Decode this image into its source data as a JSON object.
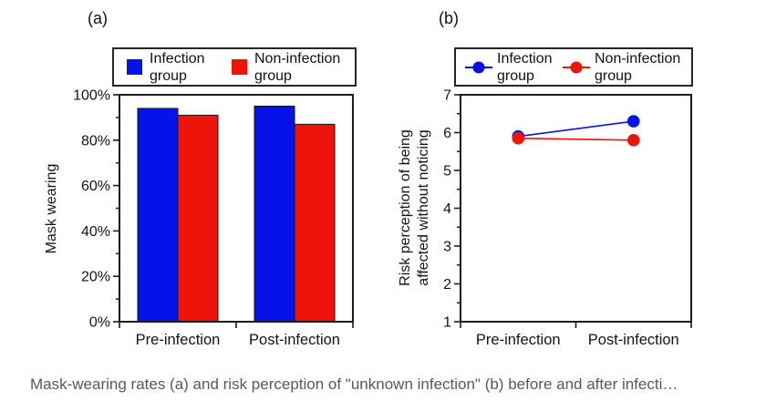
{
  "caption": "Mask-wearing rates (a) and risk perception of \"unknown infection\" (b) before and after infecti…",
  "figure": {
    "panels": [
      {
        "label": "(a)",
        "y_axis_title_lines": [
          "Mask wearing"
        ],
        "legend": {
          "items": [
            {
              "label": "Infection group"
            },
            {
              "label": "Non-infection group"
            }
          ]
        }
      },
      {
        "label": "(b)",
        "y_axis_title_lines": [
          "Risk perception of being",
          "affected without noticing"
        ],
        "legend": {
          "items": [
            {
              "label": "Infection group"
            },
            {
              "label": "Non-infection group"
            }
          ]
        }
      }
    ]
  },
  "colors": {
    "infection_group": "#0712ea",
    "non_infection_group": "#ee1409",
    "axis": "#1c1c1c",
    "caption_text": "#55585c"
  },
  "chart_data": [
    {
      "type": "bar",
      "panel": "(a)",
      "title": "",
      "xlabel": "",
      "ylabel": "Mask wearing",
      "categories": [
        "Pre-infection",
        "Post-infection"
      ],
      "series": [
        {
          "name": "Infection group",
          "color": "#0712ea",
          "values": [
            94,
            95
          ]
        },
        {
          "name": "Non-infection group",
          "color": "#ee1409",
          "values": [
            91,
            87
          ]
        }
      ],
      "ylim": [
        0,
        100
      ],
      "y_ticks": [
        "0%",
        "20%",
        "40%",
        "60%",
        "80%",
        "100%"
      ],
      "y_minor_step": 10,
      "grid": false,
      "legend_position": "top"
    },
    {
      "type": "line",
      "panel": "(b)",
      "title": "",
      "xlabel": "",
      "ylabel": "Risk perception of being affected without noticing",
      "categories": [
        "Pre-infection",
        "Post-infection"
      ],
      "series": [
        {
          "name": "Infection group",
          "color": "#0712ea",
          "values": [
            5.9,
            6.3
          ]
        },
        {
          "name": "Non-infection group",
          "color": "#ee1409",
          "values": [
            5.85,
            5.8
          ]
        }
      ],
      "ylim": [
        1,
        7
      ],
      "y_ticks": [
        1,
        2,
        3,
        4,
        5,
        6,
        7
      ],
      "y_minor_step": 0.5,
      "grid": false,
      "legend_position": "top"
    }
  ]
}
